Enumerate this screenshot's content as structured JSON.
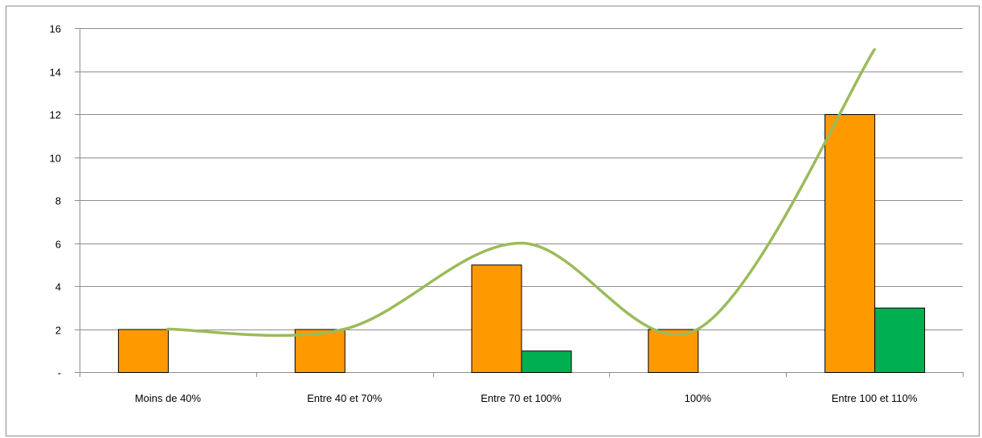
{
  "chart_data": {
    "type": "bar",
    "categories": [
      "Moins de 40%",
      "Entre 40 et 70%",
      "Entre 70 et 100%",
      "100%",
      "Entre 100 et 110%"
    ],
    "series": [
      {
        "type": "bar",
        "color": "#ff9900",
        "values": [
          2,
          2,
          5,
          2,
          12
        ]
      },
      {
        "type": "bar",
        "color": "#00b050",
        "values": [
          0,
          0,
          1,
          0,
          3
        ]
      },
      {
        "type": "line",
        "smooth": true,
        "color": "#9bbb59",
        "values": [
          2,
          2,
          6,
          2,
          15
        ]
      }
    ],
    "ylim": [
      0,
      16
    ],
    "yticks": [
      {
        "value": 0,
        "label": "-"
      },
      {
        "value": 2,
        "label": "2"
      },
      {
        "value": 4,
        "label": "4"
      },
      {
        "value": 6,
        "label": "6"
      },
      {
        "value": 8,
        "label": "8"
      },
      {
        "value": 10,
        "label": "10"
      },
      {
        "value": 12,
        "label": "12"
      },
      {
        "value": 14,
        "label": "14"
      },
      {
        "value": 16,
        "label": "16"
      }
    ],
    "grid": true,
    "legend": "none",
    "title": "",
    "xlabel": "",
    "ylabel": ""
  }
}
